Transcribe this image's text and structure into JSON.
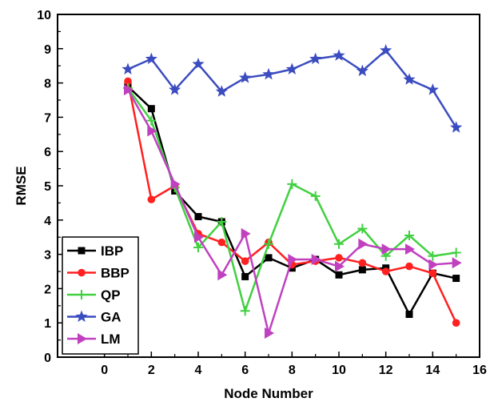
{
  "chart_data": {
    "type": "line",
    "xlabel": "Node Number",
    "ylabel": "RMSE",
    "xlim": [
      -2,
      16
    ],
    "ylim": [
      0,
      10
    ],
    "xticks": [
      0,
      2,
      4,
      6,
      8,
      10,
      12,
      14,
      16
    ],
    "yticks": [
      0,
      1,
      2,
      3,
      4,
      5,
      6,
      7,
      8,
      9,
      10
    ],
    "x": [
      1,
      2,
      3,
      4,
      5,
      6,
      7,
      8,
      9,
      10,
      11,
      12,
      13,
      14,
      15
    ],
    "legend_position": "bottom-left",
    "series": [
      {
        "name": "IBP",
        "color": "#000000",
        "marker": "square",
        "values": [
          7.9,
          7.25,
          4.85,
          4.1,
          3.95,
          2.35,
          2.9,
          2.6,
          2.85,
          2.4,
          2.55,
          2.6,
          1.25,
          2.45,
          2.3
        ]
      },
      {
        "name": "BBP",
        "color": "#ff2020",
        "marker": "circle",
        "values": [
          8.05,
          4.6,
          5.0,
          3.6,
          3.35,
          2.8,
          3.35,
          2.7,
          2.8,
          2.9,
          2.75,
          2.5,
          2.65,
          2.45,
          1.0
        ]
      },
      {
        "name": "QP",
        "color": "#40d040",
        "marker": "plus",
        "values": [
          7.85,
          6.9,
          4.95,
          3.2,
          3.95,
          1.35,
          3.3,
          5.05,
          4.7,
          3.3,
          3.75,
          2.95,
          3.55,
          2.95,
          3.05
        ]
      },
      {
        "name": "GA",
        "color": "#3b4cc0",
        "marker": "star",
        "values": [
          8.4,
          8.7,
          7.8,
          8.55,
          7.75,
          8.15,
          8.25,
          8.4,
          8.7,
          8.8,
          8.35,
          8.95,
          8.1,
          7.8,
          6.7
        ]
      },
      {
        "name": "LM",
        "color": "#c040c0",
        "marker": "triangle-right",
        "values": [
          7.8,
          6.6,
          5.05,
          3.5,
          2.4,
          3.6,
          0.7,
          2.85,
          2.85,
          2.65,
          3.3,
          3.15,
          3.15,
          2.7,
          2.75
        ]
      }
    ]
  }
}
